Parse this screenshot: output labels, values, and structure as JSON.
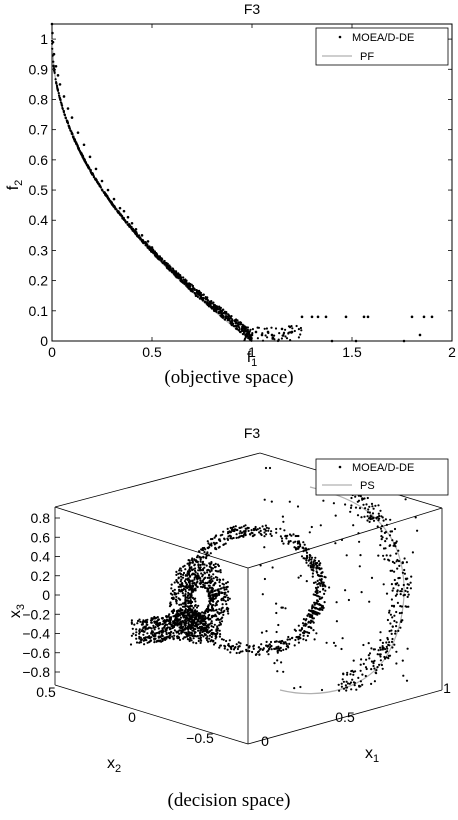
{
  "chart_data": [
    {
      "type": "scatter",
      "title": "F3",
      "xlabel": "f",
      "xlabel_sub": "1",
      "ylabel": "f",
      "ylabel_sub": "2",
      "xlim": [
        0,
        2
      ],
      "ylim": [
        0,
        1.05
      ],
      "xticks": [
        "0",
        "0.5",
        "1",
        "1.5",
        "2"
      ],
      "yticks": [
        "0",
        "0.1",
        "0.2",
        "0.3",
        "0.4",
        "0.5",
        "0.6",
        "0.7",
        "0.8",
        "0.9",
        "1"
      ],
      "legend_position": "top-right",
      "caption": "(objective space)",
      "series": [
        {
          "name": "MOEA/D-DE",
          "marker": "dot",
          "color": "#000000",
          "points": [
            [
              0.0,
              1.05
            ],
            [
              0.002,
              1.02
            ],
            [
              0.005,
              0.99
            ],
            [
              0.01,
              0.95
            ],
            [
              0.02,
              0.91
            ],
            [
              0.03,
              0.88
            ],
            [
              0.04,
              0.85
            ],
            [
              0.06,
              0.81
            ],
            [
              0.08,
              0.77
            ],
            [
              0.1,
              0.74
            ],
            [
              0.13,
              0.69
            ],
            [
              0.16,
              0.65
            ],
            [
              0.19,
              0.61
            ],
            [
              0.22,
              0.57
            ],
            [
              0.25,
              0.53
            ],
            [
              0.28,
              0.5
            ],
            [
              0.31,
              0.47
            ],
            [
              0.34,
              0.44
            ],
            [
              0.36,
              0.43
            ],
            [
              0.38,
              0.41
            ],
            [
              0.4,
              0.39
            ],
            [
              0.42,
              0.37
            ],
            [
              0.45,
              0.35
            ],
            [
              0.48,
              0.33
            ],
            [
              0.5,
              0.31
            ],
            [
              0.52,
              0.29
            ],
            [
              0.55,
              0.27
            ],
            [
              0.58,
              0.25
            ],
            [
              0.6,
              0.23
            ],
            [
              0.62,
              0.22
            ],
            [
              0.65,
              0.2
            ],
            [
              0.68,
              0.18
            ],
            [
              0.7,
              0.17
            ],
            [
              0.72,
              0.15
            ],
            [
              0.75,
              0.14
            ],
            [
              0.78,
              0.12
            ],
            [
              0.8,
              0.11
            ],
            [
              0.82,
              0.1
            ],
            [
              0.85,
              0.09
            ],
            [
              0.88,
              0.07
            ],
            [
              0.9,
              0.06
            ],
            [
              0.92,
              0.05
            ],
            [
              0.95,
              0.04
            ],
            [
              0.98,
              0.03
            ],
            [
              1.0,
              0.02
            ],
            [
              1.02,
              0.03
            ],
            [
              1.05,
              0.02
            ],
            [
              1.08,
              0.03
            ],
            [
              1.1,
              0.02
            ],
            [
              1.15,
              0.04
            ],
            [
              1.2,
              0.03
            ],
            [
              1.25,
              0.08
            ],
            [
              1.3,
              0.08
            ],
            [
              1.33,
              0.08
            ],
            [
              1.37,
              0.08
            ],
            [
              1.4,
              0.0
            ],
            [
              1.47,
              0.08
            ],
            [
              1.52,
              0.0
            ],
            [
              1.56,
              0.08
            ],
            [
              1.58,
              0.08
            ],
            [
              1.76,
              0.0
            ],
            [
              1.8,
              0.08
            ],
            [
              1.84,
              0.02
            ],
            [
              1.86,
              0.08
            ],
            [
              1.9,
              0.08
            ]
          ]
        },
        {
          "name": "PF",
          "marker": "line",
          "color": "#b0b0b0"
        }
      ]
    },
    {
      "type": "scatter",
      "title": "F3",
      "xlabel": "x",
      "xlabel_sub": "1",
      "ylabel": "x",
      "ylabel_sub": "2",
      "zlabel": "x",
      "zlabel_sub": "3",
      "xlim": [
        0,
        1
      ],
      "ylim": [
        -1,
        1
      ],
      "zlim": [
        -0.9,
        0.9
      ],
      "xticks": [
        "0",
        "0.5",
        "1"
      ],
      "yticks": [
        "0.5",
        "0",
        "−0.5"
      ],
      "zticks": [
        "0.8",
        "0.6",
        "0.4",
        "0.2",
        "0",
        "−0.2",
        "−0.4",
        "−0.6",
        "−0.8"
      ],
      "legend_position": "top-right",
      "caption": "(decision space)",
      "series": [
        {
          "name": "MOEA/D-DE",
          "marker": "dot",
          "color": "#000000"
        },
        {
          "name": "PS",
          "marker": "line",
          "color": "#b0b0b0"
        }
      ]
    }
  ]
}
